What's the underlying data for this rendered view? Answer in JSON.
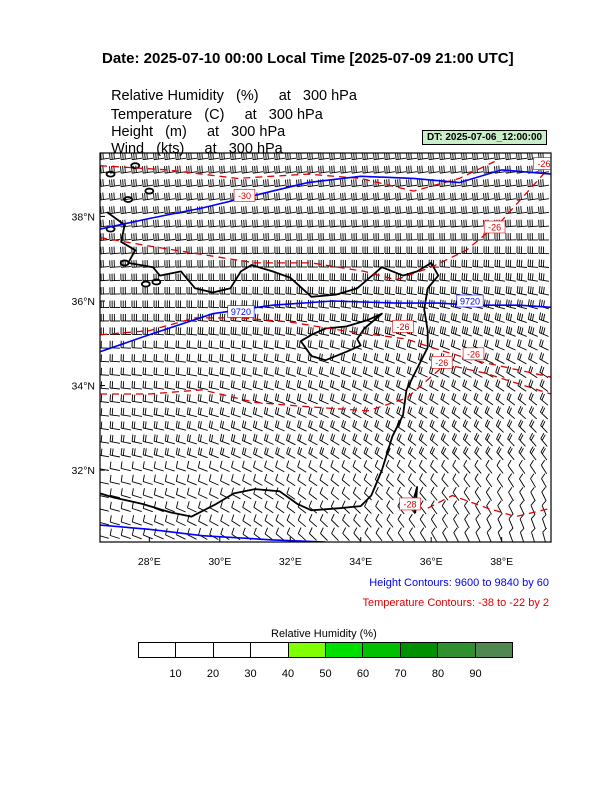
{
  "title": "Date: 2025-07-10  00:00 Local Time [2025-07-09  21:00 UTC]",
  "variables": [
    {
      "name": "Relative Humidity",
      "unit": "(%)",
      "level": "at   300 hPa"
    },
    {
      "name": "Temperature",
      "unit": "(C)",
      "level": "at   300 hPa"
    },
    {
      "name": "Height",
      "unit": "(m)",
      "level": "at   300 hPa"
    },
    {
      "name": "Wind",
      "unit": "(kts)",
      "level": "at   300 hPa"
    }
  ],
  "dt_label": "DT: 2025-07-06_12:00:00",
  "map": {
    "lon_range": [
      26.6,
      39.4
    ],
    "lat_range": [
      30.3,
      39.5
    ],
    "lon_ticks": [
      "28°E",
      "30°E",
      "32°E",
      "34°E",
      "36°E",
      "38°E"
    ],
    "lat_ticks": [
      "38°N",
      "36°N",
      "34°N",
      "32°N"
    ],
    "height_contour_labels": [
      "9720",
      "9720"
    ],
    "temperature_contour_labels": [
      "-30",
      "-26",
      "-26",
      "-26",
      "-26",
      "-26",
      "-28"
    ],
    "height_color": "#0000ff",
    "temperature_color": "#e00000",
    "coastline_color": "#000000"
  },
  "notes": {
    "height": "Height Contours: 9600 to 9840 by 60",
    "temperature": "Temperature Contours: -38 to -22 by 2"
  },
  "legend": {
    "title": "Relative Humidity  (%)",
    "ticks": [
      "10",
      "20",
      "30",
      "40",
      "50",
      "60",
      "70",
      "80",
      "90"
    ],
    "colors": [
      "#ffffff",
      "#ffffff",
      "#ffffff",
      "#ffffff",
      "#80ff00",
      "#00e000",
      "#00c000",
      "#009000",
      "#309030",
      "#508850"
    ]
  }
}
